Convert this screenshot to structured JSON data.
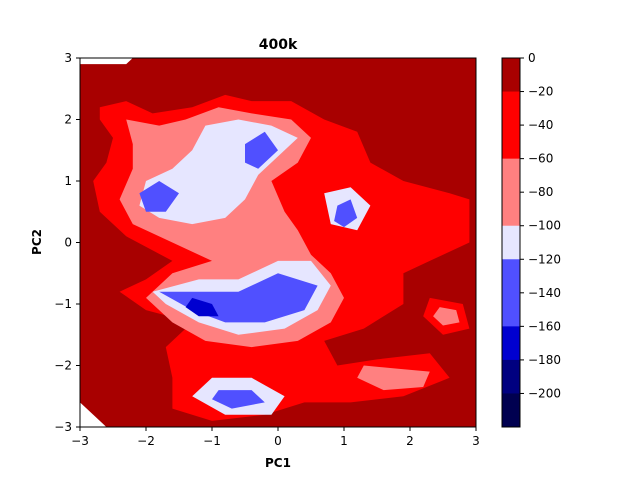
{
  "chart_data": {
    "type": "contourf",
    "title": "400k",
    "xlabel": "PC1",
    "ylabel": "PC2",
    "xlim": [
      -3,
      3
    ],
    "ylim": [
      -3,
      3
    ],
    "xticks": [
      -3,
      -2,
      -1,
      0,
      1,
      2,
      3
    ],
    "yticks": [
      -3,
      -2,
      -1,
      0,
      1,
      2,
      3
    ],
    "grid": false,
    "colormap": "seismic",
    "colorbar": {
      "ticks": [
        0,
        -20,
        -40,
        -60,
        -80,
        -100,
        -120,
        -140,
        -160,
        -180,
        -200
      ],
      "levels": [
        {
          "from": -20,
          "to": 0,
          "color": "#a80000"
        },
        {
          "from": -40,
          "to": -20,
          "color": "#ff0000"
        },
        {
          "from": -60,
          "to": -40,
          "color": "#ff0000"
        },
        {
          "from": -80,
          "to": -60,
          "color": "#ff8080"
        },
        {
          "from": -100,
          "to": -80,
          "color": "#ff8080"
        },
        {
          "from": -120,
          "to": -100,
          "color": "#e6e6ff"
        },
        {
          "from": -140,
          "to": -120,
          "color": "#5050ff"
        },
        {
          "from": -160,
          "to": -140,
          "color": "#5050ff"
        },
        {
          "from": -180,
          "to": -160,
          "color": "#0000d0"
        },
        {
          "from": -200,
          "to": -180,
          "color": "#000080"
        },
        {
          "from": -220,
          "to": -200,
          "color": "#000050"
        }
      ]
    },
    "regions": [
      {
        "name": "upper-left-red",
        "level": -30,
        "points": [
          [
            -2.7,
            2.2
          ],
          [
            -2.3,
            2.3
          ],
          [
            -1.9,
            2.1
          ],
          [
            -1.3,
            2.2
          ],
          [
            -0.8,
            2.4
          ],
          [
            -0.4,
            2.3
          ],
          [
            0.2,
            2.3
          ],
          [
            0.7,
            2.0
          ],
          [
            1.2,
            1.8
          ],
          [
            1.4,
            1.3
          ],
          [
            1.9,
            1.0
          ],
          [
            2.6,
            0.8
          ],
          [
            2.9,
            0.7
          ],
          [
            2.9,
            0.0
          ],
          [
            2.3,
            -0.3
          ],
          [
            1.9,
            -0.5
          ],
          [
            1.9,
            -1.0
          ],
          [
            1.3,
            -1.4
          ],
          [
            0.7,
            -1.6
          ],
          [
            0.9,
            -2.0
          ],
          [
            1.5,
            -1.9
          ],
          [
            2.3,
            -1.8
          ],
          [
            2.6,
            -2.2
          ],
          [
            1.9,
            -2.5
          ],
          [
            1.1,
            -2.6
          ],
          [
            0.4,
            -2.6
          ],
          [
            -0.2,
            -2.8
          ],
          [
            -1.0,
            -2.9
          ],
          [
            -1.6,
            -2.7
          ],
          [
            -1.6,
            -2.2
          ],
          [
            -1.7,
            -1.7
          ],
          [
            -1.3,
            -1.3
          ],
          [
            -2.0,
            -1.1
          ],
          [
            -2.4,
            -0.8
          ],
          [
            -2.0,
            -0.6
          ],
          [
            -1.6,
            -0.3
          ],
          [
            -2.3,
            0.1
          ],
          [
            -2.7,
            0.5
          ],
          [
            -2.8,
            1.0
          ],
          [
            -2.6,
            1.3
          ],
          [
            -2.5,
            1.7
          ],
          [
            -2.7,
            2.0
          ]
        ]
      },
      {
        "name": "upper-left-pink",
        "level": -70,
        "points": [
          [
            -2.3,
            2.0
          ],
          [
            -1.8,
            1.9
          ],
          [
            -1.4,
            2.0
          ],
          [
            -0.9,
            2.2
          ],
          [
            -0.4,
            2.1
          ],
          [
            0.2,
            2.0
          ],
          [
            0.5,
            1.7
          ],
          [
            0.3,
            1.3
          ],
          [
            -0.1,
            1.0
          ],
          [
            0.1,
            0.5
          ],
          [
            0.3,
            0.2
          ],
          [
            0.5,
            -0.2
          ],
          [
            0.8,
            -0.5
          ],
          [
            1.0,
            -0.9
          ],
          [
            0.8,
            -1.3
          ],
          [
            0.3,
            -1.6
          ],
          [
            -0.4,
            -1.7
          ],
          [
            -1.1,
            -1.6
          ],
          [
            -1.6,
            -1.3
          ],
          [
            -2.0,
            -0.9
          ],
          [
            -1.6,
            -0.5
          ],
          [
            -1.0,
            -0.3
          ],
          [
            -1.6,
            0.0
          ],
          [
            -2.2,
            0.3
          ],
          [
            -2.4,
            0.7
          ],
          [
            -2.2,
            1.2
          ],
          [
            -2.2,
            1.6
          ]
        ]
      },
      {
        "name": "upper-left-white",
        "level": -110,
        "points": [
          [
            -1.1,
            1.9
          ],
          [
            -0.6,
            2.0
          ],
          [
            -0.1,
            1.9
          ],
          [
            0.3,
            1.7
          ],
          [
            0.0,
            1.4
          ],
          [
            -0.3,
            1.1
          ],
          [
            -0.5,
            0.7
          ],
          [
            -0.8,
            0.4
          ],
          [
            -1.3,
            0.3
          ],
          [
            -1.8,
            0.4
          ],
          [
            -2.1,
            0.6
          ],
          [
            -2.0,
            1.0
          ],
          [
            -1.6,
            1.2
          ],
          [
            -1.3,
            1.5
          ]
        ]
      },
      {
        "name": "lower-white",
        "level": -110,
        "points": [
          [
            -1.9,
            -0.8
          ],
          [
            -1.2,
            -0.6
          ],
          [
            -0.6,
            -0.6
          ],
          [
            0.0,
            -0.3
          ],
          [
            0.5,
            -0.3
          ],
          [
            0.8,
            -0.7
          ],
          [
            0.6,
            -1.1
          ],
          [
            0.1,
            -1.4
          ],
          [
            -0.6,
            -1.5
          ],
          [
            -1.2,
            -1.3
          ],
          [
            -1.7,
            -1.0
          ]
        ]
      },
      {
        "name": "lower-blue",
        "level": -140,
        "points": [
          [
            -1.8,
            -0.8
          ],
          [
            -1.2,
            -0.8
          ],
          [
            -0.6,
            -0.8
          ],
          [
            0.0,
            -0.5
          ],
          [
            0.6,
            -0.7
          ],
          [
            0.4,
            -1.1
          ],
          [
            -0.2,
            -1.3
          ],
          [
            -0.8,
            -1.3
          ],
          [
            -1.3,
            -1.1
          ]
        ]
      },
      {
        "name": "lower-darkblue",
        "level": -170,
        "points": [
          [
            -1.3,
            -0.9
          ],
          [
            -1.0,
            -1.0
          ],
          [
            -0.9,
            -1.2
          ],
          [
            -1.2,
            -1.2
          ],
          [
            -1.4,
            -1.05
          ]
        ]
      },
      {
        "name": "left-blue",
        "level": -140,
        "points": [
          [
            -2.1,
            0.8
          ],
          [
            -1.8,
            1.0
          ],
          [
            -1.5,
            0.8
          ],
          [
            -1.7,
            0.5
          ],
          [
            -2.0,
            0.5
          ]
        ]
      },
      {
        "name": "center-blue",
        "level": -140,
        "points": [
          [
            -0.5,
            1.6
          ],
          [
            -0.2,
            1.8
          ],
          [
            0.0,
            1.5
          ],
          [
            -0.3,
            1.2
          ],
          [
            -0.5,
            1.3
          ]
        ]
      },
      {
        "name": "right-white",
        "level": -110,
        "points": [
          [
            0.7,
            0.8
          ],
          [
            1.1,
            0.9
          ],
          [
            1.4,
            0.6
          ],
          [
            1.2,
            0.2
          ],
          [
            0.8,
            0.3
          ]
        ]
      },
      {
        "name": "right-blue",
        "level": -140,
        "points": [
          [
            0.9,
            0.6
          ],
          [
            1.1,
            0.7
          ],
          [
            1.2,
            0.4
          ],
          [
            1.0,
            0.25
          ],
          [
            0.85,
            0.35
          ]
        ]
      },
      {
        "name": "bottom-white",
        "level": -110,
        "points": [
          [
            -1.0,
            -2.2
          ],
          [
            -0.4,
            -2.2
          ],
          [
            0.1,
            -2.5
          ],
          [
            -0.1,
            -2.8
          ],
          [
            -0.8,
            -2.8
          ],
          [
            -1.3,
            -2.5
          ]
        ]
      },
      {
        "name": "bottom-blue",
        "level": -140,
        "points": [
          [
            -0.9,
            -2.4
          ],
          [
            -0.4,
            -2.4
          ],
          [
            -0.2,
            -2.6
          ],
          [
            -0.7,
            -2.7
          ],
          [
            -1.0,
            -2.55
          ]
        ]
      },
      {
        "name": "right-red-blob",
        "level": -30,
        "points": [
          [
            2.3,
            -0.9
          ],
          [
            2.8,
            -1.0
          ],
          [
            2.9,
            -1.4
          ],
          [
            2.5,
            -1.5
          ],
          [
            2.2,
            -1.2
          ]
        ]
      },
      {
        "name": "right-pink-blob",
        "level": -70,
        "points": [
          [
            2.45,
            -1.05
          ],
          [
            2.7,
            -1.1
          ],
          [
            2.75,
            -1.3
          ],
          [
            2.5,
            -1.35
          ],
          [
            2.35,
            -1.2
          ]
        ]
      },
      {
        "name": "lower-right-pink",
        "level": -70,
        "points": [
          [
            1.3,
            -2.0
          ],
          [
            1.8,
            -2.05
          ],
          [
            2.3,
            -2.1
          ],
          [
            2.2,
            -2.35
          ],
          [
            1.6,
            -2.4
          ],
          [
            1.2,
            -2.2
          ]
        ]
      }
    ]
  }
}
